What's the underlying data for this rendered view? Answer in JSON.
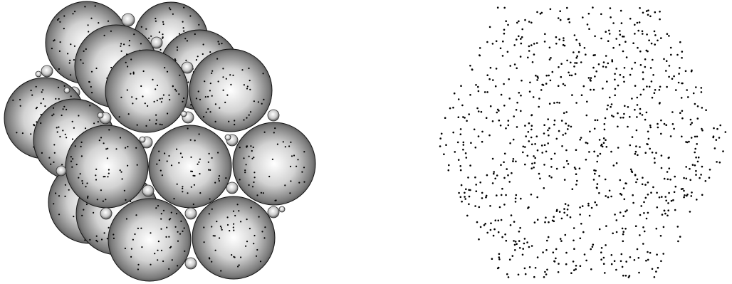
{
  "figure": {
    "panels": [
      {
        "id": "sphere-packing",
        "kind": "shaded-spheres-with-surface-points"
      },
      {
        "id": "point-cloud",
        "kind": "scatter-dots"
      }
    ],
    "colors": {
      "background": "#ffffff",
      "sphere_highlight": "#ffffff",
      "sphere_mid": "#b8b8b8",
      "sphere_shadow": "#1e1e1e",
      "dot": "#000000"
    }
  }
}
